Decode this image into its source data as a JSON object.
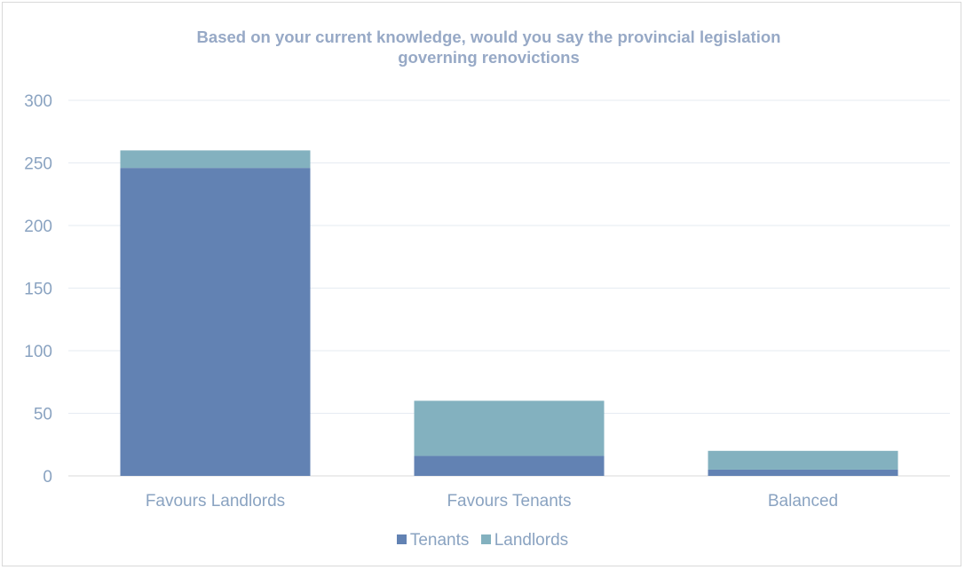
{
  "chart_data": {
    "type": "bar",
    "stacked": true,
    "title": "Based on your current knowledge, would you say the provincial legislation governing renovictions",
    "title_lines": [
      "Based on your current knowledge, would you say the provincial legislation",
      "governing renovictions"
    ],
    "categories": [
      "Favours Landlords",
      "Favours Tenants",
      "Balanced"
    ],
    "series": [
      {
        "name": "Tenants",
        "values": [
          246,
          16,
          5
        ],
        "color": "#6282b3"
      },
      {
        "name": "Landlords",
        "values": [
          14,
          44,
          15
        ],
        "color": "#83b1bf"
      }
    ],
    "ylim": [
      0,
      300
    ],
    "yticks": [
      0,
      50,
      100,
      150,
      200,
      250,
      300
    ],
    "xlabel": "",
    "ylabel": "",
    "grid": true,
    "legend_position": "bottom"
  }
}
